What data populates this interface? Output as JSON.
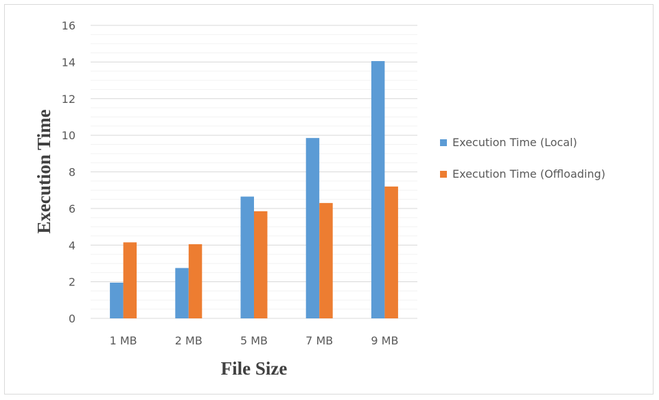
{
  "chart_data": {
    "type": "bar",
    "title": "",
    "xlabel": "File Size",
    "ylabel": "Execution Time",
    "categories": [
      "1 MB",
      "2 MB",
      "5 MB",
      "7 MB",
      "9 MB"
    ],
    "series": [
      {
        "name": "Execution Time (Local)",
        "color": "#5b9bd5",
        "values": [
          1.95,
          2.75,
          6.65,
          9.85,
          14.05
        ]
      },
      {
        "name": "Execution Time (Offloading)",
        "color": "#ed7d31",
        "values": [
          4.15,
          4.05,
          5.85,
          6.3,
          7.2
        ]
      }
    ],
    "ylim": [
      0,
      16
    ],
    "yticks": [
      0,
      2,
      4,
      6,
      8,
      10,
      12,
      14,
      16
    ],
    "y_tick_labels": [
      "0",
      "2",
      "4",
      "6",
      "8",
      "10",
      "12",
      "14",
      "16"
    ],
    "grid": "horizontal major and minor",
    "legend_position": "right"
  }
}
